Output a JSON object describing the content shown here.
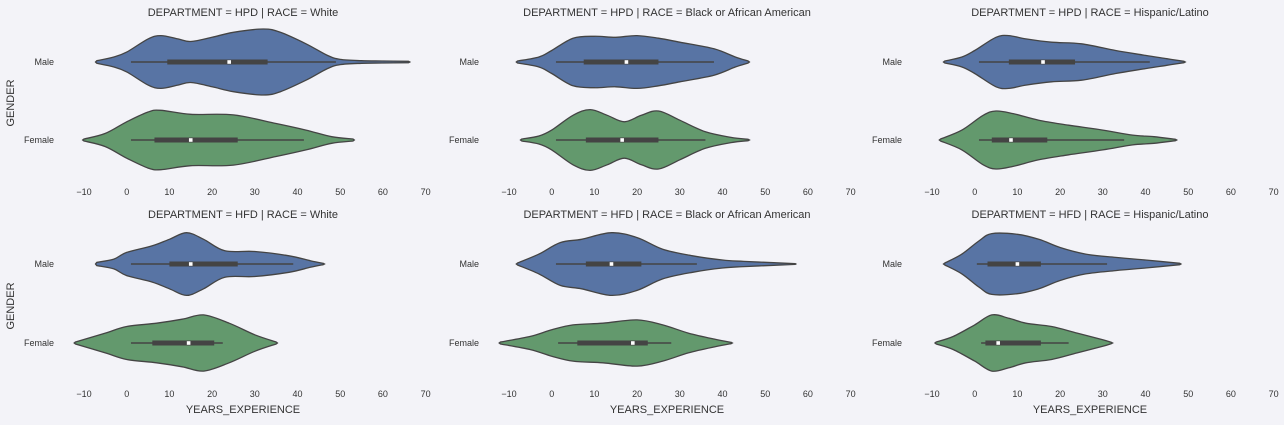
{
  "colors": {
    "background": "#f3f3f8",
    "male": "#5874a4",
    "female": "#63996d",
    "outline": "#444444",
    "median": "#ffffff"
  },
  "chart_data": {
    "type": "violin",
    "xlabel": "YEARS_EXPERIENCE",
    "ylabel": "GENDER",
    "categories": [
      "Male",
      "Female"
    ],
    "xlim": [
      -10,
      70
    ],
    "xticks": [
      -10,
      0,
      10,
      20,
      30,
      40,
      50,
      60,
      70
    ],
    "xtick_labels": [
      "−10",
      "0",
      "10",
      "20",
      "30",
      "40",
      "50",
      "60",
      "70"
    ],
    "grid": false,
    "panels": [
      {
        "title": "DEPARTMENT = HPD | RACE = White",
        "department": "HPD",
        "race": "White",
        "violins": [
          {
            "gender": "Male",
            "density": [
              [
                -7,
                0.04
              ],
              [
                -3,
                0.15
              ],
              [
                0,
                0.3
              ],
              [
                5,
                0.7
              ],
              [
                8,
                0.8
              ],
              [
                12,
                0.7
              ],
              [
                15,
                0.62
              ],
              [
                20,
                0.75
              ],
              [
                25,
                0.9
              ],
              [
                32,
                1.0
              ],
              [
                36,
                0.9
              ],
              [
                42,
                0.55
              ],
              [
                47,
                0.2
              ],
              [
                50,
                0.08
              ],
              [
                55,
                0.04
              ],
              [
                60,
                0.03
              ],
              [
                66,
                0.02
              ]
            ],
            "box": {
              "whisker_low": 1,
              "q1": 9.5,
              "median": 24,
              "q3": 33,
              "whisker_high": 49
            }
          },
          {
            "gender": "Female",
            "density": [
              [
                -10,
                0.03
              ],
              [
                -5,
                0.2
              ],
              [
                0,
                0.55
              ],
              [
                5,
                0.85
              ],
              [
                8,
                0.9
              ],
              [
                15,
                0.78
              ],
              [
                25,
                0.76
              ],
              [
                35,
                0.5
              ],
              [
                42,
                0.3
              ],
              [
                48,
                0.1
              ],
              [
                53,
                0.03
              ]
            ],
            "box": {
              "whisker_low": 1,
              "q1": 6.5,
              "median": 15,
              "q3": 26,
              "whisker_high": 41.5
            }
          }
        ]
      },
      {
        "title": "DEPARTMENT = HPD | RACE = Black or African American",
        "department": "HPD",
        "race": "Black or African American",
        "violins": [
          {
            "gender": "Male",
            "density": [
              [
                -8,
                0.03
              ],
              [
                -3,
                0.15
              ],
              [
                0,
                0.35
              ],
              [
                5,
                0.72
              ],
              [
                10,
                0.78
              ],
              [
                15,
                0.75
              ],
              [
                20,
                0.8
              ],
              [
                25,
                0.72
              ],
              [
                30,
                0.6
              ],
              [
                38,
                0.4
              ],
              [
                43,
                0.15
              ],
              [
                46,
                0.03
              ]
            ],
            "box": {
              "whisker_low": 1,
              "q1": 7.5,
              "median": 17.5,
              "q3": 25,
              "whisker_high": 38
            }
          },
          {
            "gender": "Female",
            "density": [
              [
                -7,
                0.03
              ],
              [
                -3,
                0.12
              ],
              [
                0,
                0.3
              ],
              [
                5,
                0.75
              ],
              [
                9,
                0.92
              ],
              [
                13,
                0.75
              ],
              [
                17,
                0.55
              ],
              [
                21,
                0.75
              ],
              [
                25,
                0.88
              ],
              [
                30,
                0.6
              ],
              [
                36,
                0.25
              ],
              [
                42,
                0.08
              ],
              [
                46,
                0.02
              ]
            ],
            "box": {
              "whisker_low": 1,
              "q1": 8,
              "median": 16.5,
              "q3": 25,
              "whisker_high": 36
            }
          }
        ]
      },
      {
        "title": "DEPARTMENT = HPD | RACE = Hispanic/Latino",
        "department": "HPD",
        "race": "Hispanic/Latino",
        "violins": [
          {
            "gender": "Male",
            "density": [
              [
                -7,
                0.03
              ],
              [
                -3,
                0.15
              ],
              [
                0,
                0.35
              ],
              [
                5,
                0.75
              ],
              [
                8,
                0.8
              ],
              [
                12,
                0.7
              ],
              [
                18,
                0.6
              ],
              [
                25,
                0.55
              ],
              [
                33,
                0.35
              ],
              [
                40,
                0.2
              ],
              [
                45,
                0.1
              ],
              [
                49,
                0.02
              ]
            ],
            "box": {
              "whisker_low": 1,
              "q1": 8,
              "median": 16,
              "q3": 23.5,
              "whisker_high": 41
            }
          },
          {
            "gender": "Female",
            "density": [
              [
                -8,
                0.03
              ],
              [
                -3,
                0.3
              ],
              [
                2,
                0.75
              ],
              [
                5,
                0.88
              ],
              [
                9,
                0.8
              ],
              [
                15,
                0.6
              ],
              [
                22,
                0.45
              ],
              [
                30,
                0.3
              ],
              [
                37,
                0.15
              ],
              [
                42,
                0.1
              ],
              [
                47,
                0.02
              ]
            ],
            "box": {
              "whisker_low": 1,
              "q1": 4,
              "median": 8.5,
              "q3": 17,
              "whisker_high": 35
            }
          }
        ]
      },
      {
        "title": "DEPARTMENT = HFD | RACE = White",
        "department": "HFD",
        "race": "White",
        "violins": [
          {
            "gender": "Male",
            "density": [
              [
                -7,
                0.05
              ],
              [
                -3,
                0.15
              ],
              [
                0,
                0.35
              ],
              [
                6,
                0.55
              ],
              [
                10,
                0.75
              ],
              [
                14,
                0.95
              ],
              [
                18,
                0.75
              ],
              [
                23,
                0.4
              ],
              [
                30,
                0.38
              ],
              [
                38,
                0.25
              ],
              [
                43,
                0.1
              ],
              [
                46,
                0.02
              ]
            ],
            "box": {
              "whisker_low": 1,
              "q1": 10,
              "median": 15,
              "q3": 26,
              "whisker_high": 39
            }
          },
          {
            "gender": "Female",
            "density": [
              [
                -12,
                0.03
              ],
              [
                -5,
                0.3
              ],
              [
                0,
                0.5
              ],
              [
                7,
                0.6
              ],
              [
                13,
                0.72
              ],
              [
                18,
                0.85
              ],
              [
                24,
                0.6
              ],
              [
                30,
                0.25
              ],
              [
                35,
                0.03
              ]
            ],
            "box": {
              "whisker_low": 1,
              "q1": 6,
              "median": 14.5,
              "q3": 20.5,
              "whisker_high": 22.5
            }
          }
        ]
      },
      {
        "title": "DEPARTMENT = HFD | RACE = Black or African American",
        "department": "HFD",
        "race": "Black or African American",
        "violins": [
          {
            "gender": "Male",
            "density": [
              [
                -8,
                0.03
              ],
              [
                -3,
                0.3
              ],
              [
                2,
                0.65
              ],
              [
                7,
                0.75
              ],
              [
                14,
                0.95
              ],
              [
                20,
                0.8
              ],
              [
                26,
                0.45
              ],
              [
                33,
                0.25
              ],
              [
                40,
                0.12
              ],
              [
                45,
                0.08
              ],
              [
                52,
                0.04
              ],
              [
                57,
                0.01
              ]
            ],
            "box": {
              "whisker_low": 1,
              "q1": 8,
              "median": 14,
              "q3": 21,
              "whisker_high": 34
            }
          },
          {
            "gender": "Female",
            "density": [
              [
                -12,
                0.03
              ],
              [
                -5,
                0.2
              ],
              [
                0,
                0.4
              ],
              [
                5,
                0.55
              ],
              [
                12,
                0.6
              ],
              [
                20,
                0.7
              ],
              [
                26,
                0.55
              ],
              [
                32,
                0.3
              ],
              [
                38,
                0.12
              ],
              [
                42,
                0.02
              ]
            ],
            "box": {
              "whisker_low": 1.5,
              "q1": 6,
              "median": 19,
              "q3": 22.5,
              "whisker_high": 28
            }
          }
        ]
      },
      {
        "title": "DEPARTMENT = HFD | RACE = Hispanic/Latino",
        "department": "HFD",
        "race": "Hispanic/Latino",
        "violins": [
          {
            "gender": "Male",
            "density": [
              [
                -7,
                0.03
              ],
              [
                -3,
                0.3
              ],
              [
                1,
                0.7
              ],
              [
                4,
                0.92
              ],
              [
                10,
                0.9
              ],
              [
                15,
                0.75
              ],
              [
                20,
                0.5
              ],
              [
                26,
                0.3
              ],
              [
                33,
                0.2
              ],
              [
                40,
                0.12
              ],
              [
                48,
                0.02
              ]
            ],
            "box": {
              "whisker_low": 0.5,
              "q1": 3,
              "median": 10,
              "q3": 15.5,
              "whisker_high": 31
            }
          },
          {
            "gender": "Female",
            "density": [
              [
                -9,
                0.03
              ],
              [
                -5,
                0.2
              ],
              [
                0,
                0.55
              ],
              [
                4,
                0.85
              ],
              [
                8,
                0.75
              ],
              [
                12,
                0.6
              ],
              [
                18,
                0.5
              ],
              [
                24,
                0.3
              ],
              [
                30,
                0.1
              ],
              [
                32,
                0.02
              ]
            ],
            "box": {
              "whisker_low": 1.5,
              "q1": 2.5,
              "median": 5.5,
              "q3": 15.5,
              "whisker_high": 22
            }
          }
        ]
      }
    ]
  }
}
